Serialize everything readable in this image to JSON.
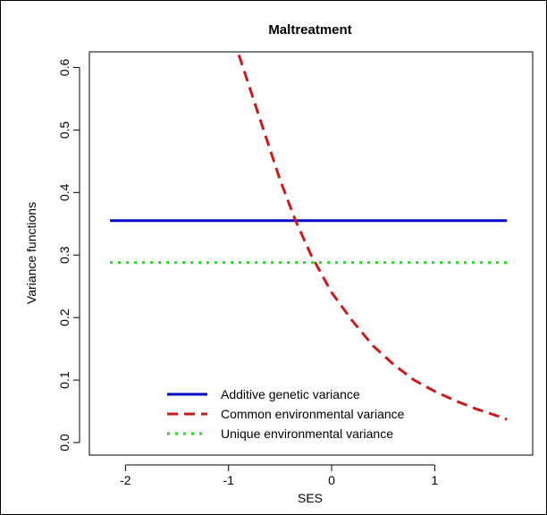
{
  "chart_data": {
    "type": "line",
    "title": "Maltreatment",
    "xlabel": "SES",
    "ylabel": "Variance functions",
    "xlim": [
      -2.35,
      1.95
    ],
    "ylim": [
      -0.02,
      0.625
    ],
    "xticks": [
      -2,
      -1,
      0,
      1
    ],
    "yticks": [
      0.0,
      0.1,
      0.2,
      0.3,
      0.4,
      0.5,
      0.6
    ],
    "grid": false,
    "legend_position": "bottom-center",
    "series": [
      {
        "name": "Additive genetic variance",
        "color": "#0000CD",
        "style": "solid",
        "x": [
          -2.15,
          1.7
        ],
        "y": [
          0.355,
          0.355
        ]
      },
      {
        "name": "Common environmental variance",
        "color": "#CC1A1A",
        "style": "dashed",
        "x": [
          -0.9,
          -0.7,
          -0.5,
          -0.35,
          -0.2,
          0.0,
          0.2,
          0.4,
          0.6,
          0.8,
          1.0,
          1.2,
          1.4,
          1.6,
          1.7
        ],
        "y": [
          0.62,
          0.52,
          0.42,
          0.355,
          0.3,
          0.24,
          0.195,
          0.155,
          0.125,
          0.1,
          0.082,
          0.067,
          0.054,
          0.043,
          0.037
        ]
      },
      {
        "name": "Unique environmental variance",
        "color": "#22DD22",
        "style": "dotted",
        "x": [
          -2.15,
          1.7
        ],
        "y": [
          0.288,
          0.288
        ]
      }
    ]
  }
}
